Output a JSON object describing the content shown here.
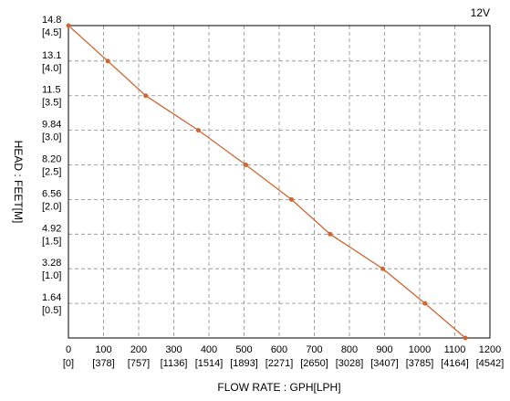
{
  "chart_data": {
    "type": "line",
    "voltage_label": "12V",
    "xlabel": "FLOW RATE : GPH[LPH]",
    "ylabel": "HEAD : FEET[M]",
    "xlim": [
      0,
      1200
    ],
    "ylim": [
      0,
      14.8
    ],
    "grid": true,
    "x_ticks": [
      {
        "value": 0,
        "label": "0",
        "sub": "[0]"
      },
      {
        "value": 100,
        "label": "100",
        "sub": "[378]"
      },
      {
        "value": 200,
        "label": "200",
        "sub": "[757]"
      },
      {
        "value": 300,
        "label": "300",
        "sub": "[1136]"
      },
      {
        "value": 400,
        "label": "400",
        "sub": "[1514]"
      },
      {
        "value": 500,
        "label": "500",
        "sub": "[1893]"
      },
      {
        "value": 600,
        "label": "600",
        "sub": "[2271]"
      },
      {
        "value": 700,
        "label": "700",
        "sub": "[2650]"
      },
      {
        "value": 800,
        "label": "800",
        "sub": "[3028]"
      },
      {
        "value": 900,
        "label": "900",
        "sub": "[3407]"
      },
      {
        "value": 1000,
        "label": "1000",
        "sub": "[3785]"
      },
      {
        "value": 1100,
        "label": "1100",
        "sub": "[4164]"
      },
      {
        "value": 1200,
        "label": "1200",
        "sub": "[4542]"
      }
    ],
    "y_ticks": [
      {
        "value": 14.8,
        "label": "14.8",
        "sub": "[4.5]"
      },
      {
        "value": 13.12,
        "label": "13.1",
        "sub": "[4.0]"
      },
      {
        "value": 11.48,
        "label": "11.5",
        "sub": "[3.5]"
      },
      {
        "value": 9.84,
        "label": "9.84",
        "sub": "[3.0]"
      },
      {
        "value": 8.2,
        "label": "8.20",
        "sub": "[2.5]"
      },
      {
        "value": 6.56,
        "label": "6.56",
        "sub": "[2.0]"
      },
      {
        "value": 4.92,
        "label": "4.92",
        "sub": "[1.5]"
      },
      {
        "value": 3.28,
        "label": "3.28",
        "sub": "[1.0]"
      },
      {
        "value": 1.64,
        "label": "1.64",
        "sub": "[0.5]"
      }
    ],
    "series": [
      {
        "color": "#cc6633",
        "points": [
          {
            "x": 0,
            "y": 14.8
          },
          {
            "x": 112,
            "y": 13.12
          },
          {
            "x": 220,
            "y": 11.48
          },
          {
            "x": 370,
            "y": 9.84
          },
          {
            "x": 505,
            "y": 8.2
          },
          {
            "x": 635,
            "y": 6.56
          },
          {
            "x": 745,
            "y": 4.92
          },
          {
            "x": 895,
            "y": 3.28
          },
          {
            "x": 1015,
            "y": 1.64
          },
          {
            "x": 1130,
            "y": 0
          }
        ]
      }
    ]
  }
}
